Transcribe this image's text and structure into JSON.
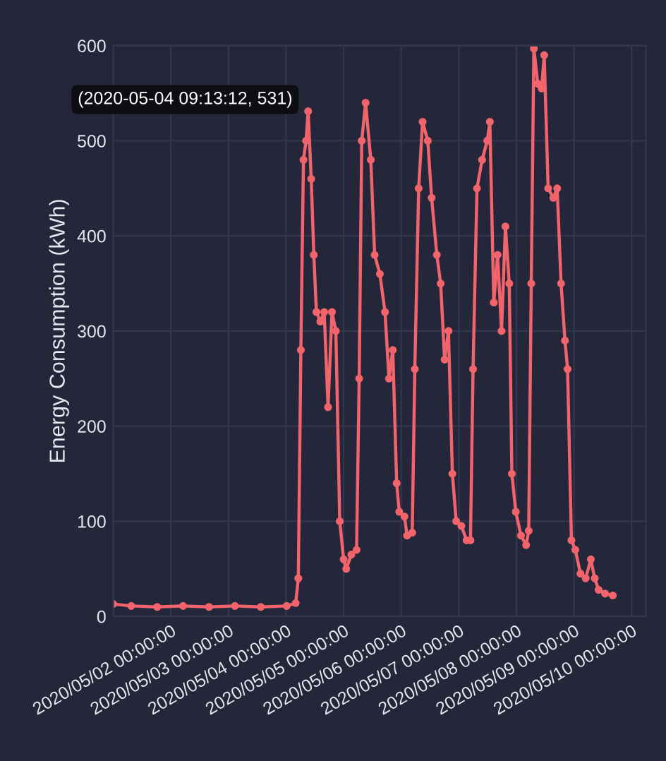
{
  "chart_data": {
    "type": "line",
    "ylabel": "Energy Consumption (kWh)",
    "x": [
      "2020-05-01T00:00",
      "2020-05-01T07:30",
      "2020-05-01T18:20",
      "2020-05-02T05:07",
      "2020-05-02T15:55",
      "2020-05-03T02:41",
      "2020-05-03T13:29",
      "2020-05-04T00:16",
      "2020-05-04T04:03",
      "2020-05-04T05:07",
      "2020-05-04T06:11",
      "2020-05-04T07:16",
      "2020-05-04T08:21",
      "2020-05-04T09:13:12",
      "2020-05-04T10:30",
      "2020-05-04T11:35",
      "2020-05-04T12:40",
      "2020-05-04T14:18",
      "2020-05-04T15:55",
      "2020-05-04T17:31",
      "2020-05-04T19:09",
      "2020-05-04T20:46",
      "2020-05-04T22:23",
      "2020-05-05T00:00",
      "2020-05-05T01:05",
      "2020-05-05T03:14",
      "2020-05-05T05:24",
      "2020-05-05T06:29",
      "2020-05-05T07:33",
      "2020-05-05T09:10",
      "2020-05-05T11:19",
      "2020-05-05T12:56",
      "2020-05-05T15:06",
      "2020-05-05T17:15",
      "2020-05-05T18:53",
      "2020-05-05T20:29",
      "2020-05-05T22:06",
      "2020-05-05T23:11",
      "2020-05-06T01:21",
      "2020-05-06T02:25",
      "2020-05-06T04:35",
      "2020-05-06T05:40",
      "2020-05-06T07:16",
      "2020-05-06T08:54",
      "2020-05-06T11:04",
      "2020-05-06T12:40",
      "2020-05-06T14:50",
      "2020-05-06T16:26",
      "2020-05-06T18:04",
      "2020-05-06T19:41",
      "2020-05-06T21:19",
      "2020-05-06T22:55",
      "2020-05-07T01:05",
      "2020-05-07T03:14",
      "2020-05-07T04:51",
      "2020-05-07T05:56",
      "2020-05-07T07:34",
      "2020-05-07T09:42",
      "2020-05-07T11:51",
      "2020-05-07T12:56",
      "2020-05-07T14:34",
      "2020-05-07T16:10",
      "2020-05-07T17:48",
      "2020-05-07T19:25",
      "2020-05-07T21:01",
      "2020-05-07T22:06",
      "2020-05-07T23:44",
      "2020-05-08T01:54",
      "2020-05-08T04:03",
      "2020-05-08T05:07",
      "2020-05-08T06:11",
      "2020-05-08T07:16",
      "2020-05-08T08:54",
      "2020-05-08T10:30",
      "2020-05-08T11:35",
      "2020-05-08T13:13",
      "2020-05-08T15:22",
      "2020-05-08T16:59",
      "2020-05-08T18:36",
      "2020-05-08T20:14",
      "2020-05-08T21:19",
      "2020-05-08T22:55",
      "2020-05-09T00:32",
      "2020-05-09T02:41",
      "2020-05-09T04:51",
      "2020-05-09T07:00",
      "2020-05-09T08:38",
      "2020-05-09T10:15",
      "2020-05-09T12:56",
      "2020-05-09T16:10"
    ],
    "series": [
      {
        "color": "#f2646c",
        "values": [
          13,
          11,
          10,
          11,
          10,
          11,
          10,
          11,
          14,
          40,
          280,
          480,
          500,
          531,
          460,
          380,
          320,
          310,
          320,
          220,
          320,
          300,
          100,
          60,
          50,
          65,
          70,
          250,
          500,
          540,
          480,
          380,
          360,
          320,
          250,
          280,
          140,
          110,
          105,
          85,
          88,
          260,
          450,
          520,
          500,
          440,
          380,
          350,
          270,
          300,
          150,
          100,
          95,
          80,
          80,
          260,
          450,
          480,
          500,
          520,
          330,
          380,
          300,
          410,
          350,
          150,
          110,
          85,
          75,
          90,
          350,
          597,
          560,
          555,
          590,
          450,
          440,
          450,
          350,
          290,
          260,
          80,
          70,
          45,
          40,
          60,
          40,
          28,
          24,
          22
        ]
      }
    ],
    "xlim": [
      "2020-05-01T00:00",
      "2020-05-10T06:00"
    ],
    "xticks": [
      {
        "value": "2020-05-02",
        "label": "2020/05/02 00:00:00"
      },
      {
        "value": "2020-05-03",
        "label": "2020/05/03 00:00:00"
      },
      {
        "value": "2020-05-04",
        "label": "2020/05/04 00:00:00"
      },
      {
        "value": "2020-05-05",
        "label": "2020/05/05 00:00:00"
      },
      {
        "value": "2020-05-06",
        "label": "2020/05/06 00:00:00"
      },
      {
        "value": "2020-05-07",
        "label": "2020/05/07 00:00:00"
      },
      {
        "value": "2020-05-08",
        "label": "2020/05/08 00:00:00"
      },
      {
        "value": "2020-05-09",
        "label": "2020/05/09 00:00:00"
      },
      {
        "value": "2020-05-10",
        "label": "2020/05/10 00:00:00"
      }
    ],
    "ylim": [
      0,
      600
    ],
    "yticks": [
      0,
      100,
      200,
      300,
      400,
      500,
      600
    ],
    "grid": true,
    "legend": false,
    "marker": "circle",
    "line_style": "solid",
    "annotations": [
      {
        "text": "(2020-05-04 09:13:12, 531)",
        "x": "2020-05-04T09:13:12",
        "y": 531
      }
    ]
  }
}
